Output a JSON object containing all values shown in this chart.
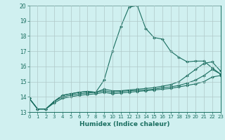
{
  "title": "",
  "xlabel": "Humidex (Indice chaleur)",
  "bg_color": "#d0f0f0",
  "grid_color": "#b0c8c8",
  "line_color": "#1a6e60",
  "xlim": [
    0,
    23
  ],
  "ylim": [
    13,
    20
  ],
  "xticks": [
    0,
    1,
    2,
    3,
    4,
    5,
    6,
    7,
    8,
    9,
    10,
    11,
    12,
    13,
    14,
    15,
    16,
    17,
    18,
    19,
    20,
    21,
    22,
    23
  ],
  "yticks": [
    13,
    14,
    15,
    16,
    17,
    18,
    19,
    20
  ],
  "line1_x": [
    0,
    1,
    2,
    3,
    4,
    5,
    6,
    7,
    8,
    9,
    10,
    11,
    12,
    13,
    14,
    15,
    16,
    17,
    18,
    19,
    20,
    21,
    22,
    23
  ],
  "line1_y": [
    13.9,
    13.2,
    13.2,
    13.7,
    14.1,
    14.2,
    14.3,
    14.35,
    14.3,
    15.1,
    17.0,
    18.6,
    19.9,
    20.0,
    18.5,
    17.9,
    17.8,
    17.0,
    16.6,
    16.3,
    16.35,
    16.35,
    15.9,
    15.5
  ],
  "line2_x": [
    0,
    1,
    2,
    3,
    4,
    5,
    6,
    7,
    8,
    9,
    10,
    11,
    12,
    13,
    14,
    15,
    16,
    17,
    18,
    19,
    20,
    21,
    22,
    23
  ],
  "line2_y": [
    13.9,
    13.2,
    13.2,
    13.7,
    14.1,
    14.2,
    14.3,
    14.35,
    14.3,
    14.5,
    14.4,
    14.4,
    14.45,
    14.5,
    14.55,
    14.6,
    14.7,
    14.8,
    15.0,
    15.4,
    15.8,
    16.2,
    16.3,
    15.7
  ],
  "line3_x": [
    0,
    1,
    2,
    3,
    4,
    5,
    6,
    7,
    8,
    9,
    10,
    11,
    12,
    13,
    14,
    15,
    16,
    17,
    18,
    19,
    20,
    21,
    22,
    23
  ],
  "line3_y": [
    13.9,
    13.2,
    13.2,
    13.7,
    14.0,
    14.1,
    14.2,
    14.25,
    14.3,
    14.4,
    14.3,
    14.35,
    14.4,
    14.42,
    14.45,
    14.5,
    14.6,
    14.65,
    14.75,
    14.9,
    15.1,
    15.4,
    15.8,
    15.5
  ],
  "line4_x": [
    0,
    1,
    2,
    3,
    4,
    5,
    6,
    7,
    8,
    9,
    10,
    11,
    12,
    13,
    14,
    15,
    16,
    17,
    18,
    19,
    20,
    21,
    22,
    23
  ],
  "line4_y": [
    13.9,
    13.2,
    13.2,
    13.6,
    13.9,
    14.0,
    14.1,
    14.15,
    14.2,
    14.3,
    14.2,
    14.25,
    14.3,
    14.35,
    14.4,
    14.45,
    14.5,
    14.55,
    14.65,
    14.75,
    14.85,
    15.0,
    15.3,
    15.4
  ]
}
